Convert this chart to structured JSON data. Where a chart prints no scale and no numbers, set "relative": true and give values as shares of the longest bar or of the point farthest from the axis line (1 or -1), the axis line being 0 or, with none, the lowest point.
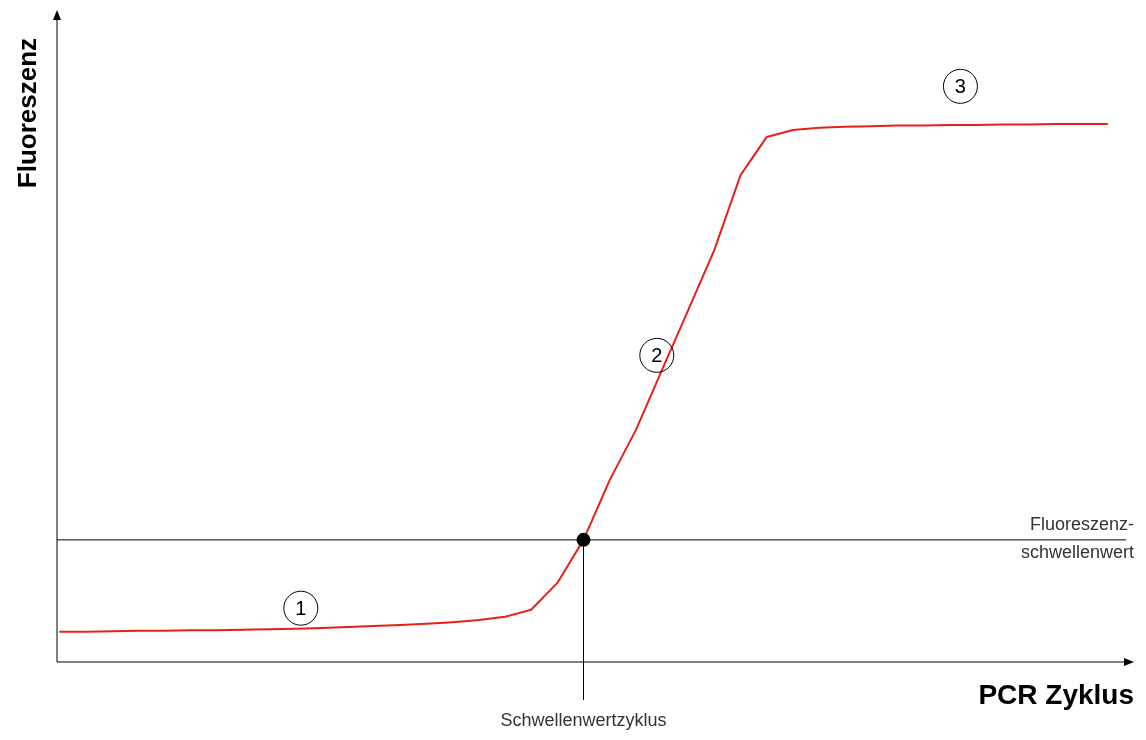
{
  "chart_data": {
    "type": "line",
    "relative": true,
    "xlabel": "PCR Zyklus",
    "ylabel": "Fluoreszenz",
    "categories": [
      null,
      null,
      null,
      null,
      null,
      null,
      null,
      null,
      null,
      null,
      null,
      null,
      null,
      null,
      null,
      null,
      null,
      null,
      null,
      null,
      null,
      null,
      null,
      null,
      null,
      null,
      null,
      null,
      null,
      null,
      null,
      null,
      null,
      null,
      null,
      null,
      null,
      null,
      null,
      null,
      null
    ],
    "series": [
      {
        "color": "#e8201c",
        "values": [
          0.056,
          0.056,
          0.057,
          0.058,
          0.058,
          0.059,
          0.059,
          0.06,
          0.061,
          0.062,
          0.063,
          0.065,
          0.067,
          0.069,
          0.071,
          0.074,
          0.078,
          0.084,
          0.097,
          0.147,
          0.227,
          0.338,
          0.431,
          0.543,
          0.654,
          0.766,
          0.905,
          0.976,
          0.989,
          0.993,
          0.995,
          0.996,
          0.997,
          0.997,
          0.998,
          0.998,
          0.999,
          0.999,
          1,
          1,
          1
        ]
      }
    ],
    "ref_lines": [
      {
        "axis": "y",
        "value": 0.227,
        "label": "Fluoreszenz-\nschwellenwert",
        "color": "#000000"
      }
    ],
    "annotations": [
      "1",
      "2",
      "3",
      "Schwellenwertzyklus"
    ],
    "legend": false
  }
}
